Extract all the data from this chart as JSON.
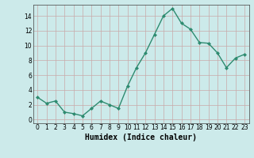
{
  "x": [
    0,
    1,
    2,
    3,
    4,
    5,
    6,
    7,
    8,
    9,
    10,
    11,
    12,
    13,
    14,
    15,
    16,
    17,
    18,
    19,
    20,
    21,
    22,
    23
  ],
  "y": [
    3.0,
    2.2,
    2.5,
    1.0,
    0.8,
    0.5,
    1.5,
    2.5,
    2.0,
    1.5,
    4.5,
    7.0,
    9.0,
    11.5,
    14.0,
    15.0,
    13.0,
    12.2,
    10.4,
    10.3,
    9.0,
    7.0,
    8.3,
    8.8
  ],
  "line_color": "#2e8b70",
  "marker": "D",
  "marker_size": 2.0,
  "line_width": 1.0,
  "bg_color": "#cceaea",
  "grid_color": "#c8a8a8",
  "xlabel": "Humidex (Indice chaleur)",
  "xlabel_fontsize": 7,
  "xlabel_fontweight": "bold",
  "xlim": [
    -0.5,
    23.5
  ],
  "ylim": [
    -0.5,
    15.5
  ],
  "yticks": [
    0,
    2,
    4,
    6,
    8,
    10,
    12,
    14
  ],
  "xticks": [
    0,
    1,
    2,
    3,
    4,
    5,
    6,
    7,
    8,
    9,
    10,
    11,
    12,
    13,
    14,
    15,
    16,
    17,
    18,
    19,
    20,
    21,
    22,
    23
  ],
  "tick_fontsize": 5.5
}
